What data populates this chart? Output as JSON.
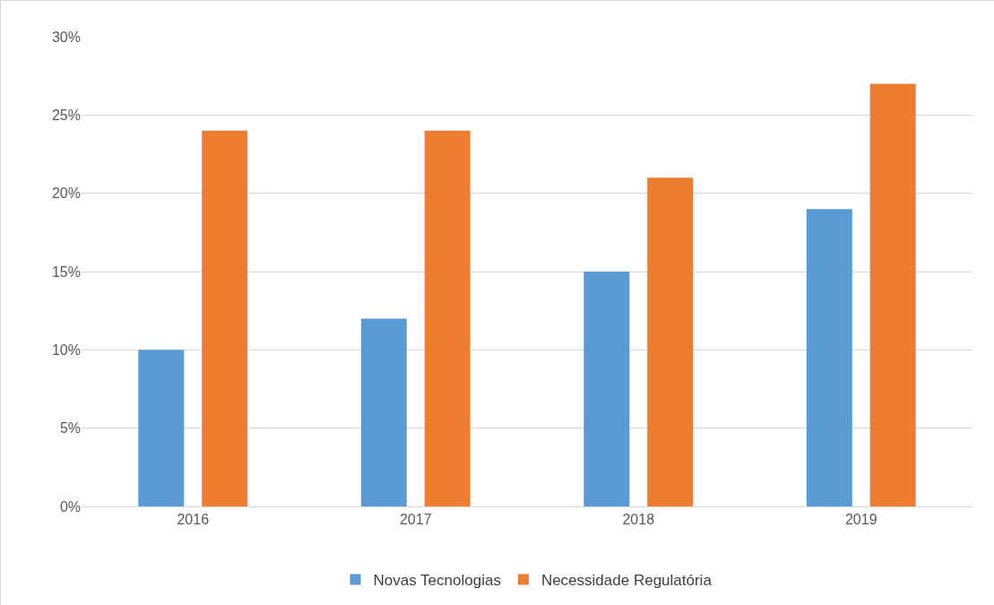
{
  "chart_data": {
    "type": "bar",
    "categories": [
      "2016",
      "2017",
      "2018",
      "2019"
    ],
    "series": [
      {
        "name": "Novas Tecnologias",
        "color": "#5b9bd5",
        "values": [
          10,
          12,
          15,
          19
        ]
      },
      {
        "name": "Necessidade Regulatória",
        "color": "#ed7d31",
        "values": [
          24,
          24,
          21,
          27
        ]
      }
    ],
    "ylim": [
      0,
      30
    ],
    "yticks": [
      {
        "value": 0,
        "label": "0%"
      },
      {
        "value": 5,
        "label": "5%"
      },
      {
        "value": 10,
        "label": "10%"
      },
      {
        "value": 15,
        "label": "15%"
      },
      {
        "value": 20,
        "label": "20%"
      },
      {
        "value": 25,
        "label": "25%"
      },
      {
        "value": 30,
        "label": "30%"
      }
    ],
    "grid": "y",
    "legend": "bottom"
  }
}
